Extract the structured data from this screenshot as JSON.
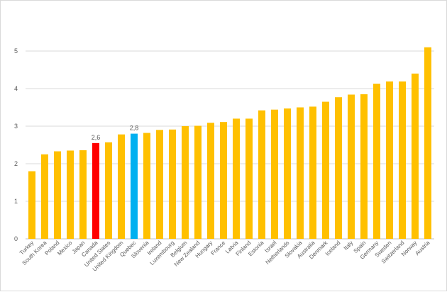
{
  "chart_data": {
    "type": "bar",
    "title": "",
    "xlabel": "",
    "ylabel": "",
    "ylim": [
      0,
      6
    ],
    "yticks": [
      0,
      1,
      2,
      3,
      4,
      5
    ],
    "grid": true,
    "categories": [
      "Turkey",
      "South Korea",
      "Poland",
      "Mexico",
      "Japan",
      "Canada",
      "United States",
      "United Kingdom",
      "Quebec",
      "Slovenia",
      "Ireland",
      "Luxembourg",
      "Belgium",
      "New Zealand",
      "Hungary",
      "France",
      "Latvia",
      "Finland",
      "Estonia",
      "Israel",
      "Netherlands",
      "Slovakia",
      "Australia",
      "Denmark",
      "Iceland",
      "Italy",
      "Spain",
      "Germany",
      "Sweden",
      "Switzerland",
      "Norway",
      "Austria"
    ],
    "values": [
      1.8,
      2.25,
      2.33,
      2.35,
      2.36,
      2.55,
      2.57,
      2.78,
      2.8,
      2.82,
      2.9,
      2.91,
      3.0,
      3.01,
      3.09,
      3.11,
      3.2,
      3.2,
      3.42,
      3.44,
      3.47,
      3.5,
      3.52,
      3.65,
      3.77,
      3.84,
      3.85,
      4.13,
      4.19,
      4.19,
      4.4,
      5.1
    ],
    "data_labels": {
      "5": "2,6",
      "8": "2,8"
    },
    "colors": {
      "default": "#ffc000",
      "highlight": {
        "5": "#ff0000",
        "8": "#00b0f0"
      }
    }
  }
}
